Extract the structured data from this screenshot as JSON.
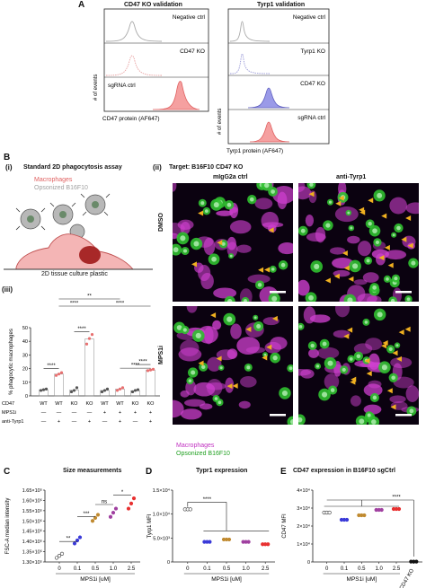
{
  "panel_labels": {
    "A": "A",
    "B": "B",
    "C": "C",
    "D": "D",
    "E": "E",
    "bi": "(i)",
    "bii": "(ii)",
    "biii": "(iii)"
  },
  "panelA": {
    "cd47": {
      "title": "CD47 KO validation",
      "xlabel": "CD47 protein (AF647)",
      "ylabel": "# of events",
      "rows": [
        {
          "label": "Negative ctrl",
          "color": "#a8a8a8",
          "fill": false
        },
        {
          "label": "CD47 KO",
          "color": "#e8a0a0",
          "fill": false
        },
        {
          "label": "sgRNA ctrl",
          "color": "#f08080",
          "fill": true
        }
      ]
    },
    "tyrp1": {
      "title": "Tyrp1 validation",
      "xlabel": "Tyrp1 protein (AF647)",
      "ylabel": "# of events",
      "rows": [
        {
          "label": "Negative ctrl",
          "color": "#a8a8a8",
          "fill": false
        },
        {
          "label": "Tyrp1 KO",
          "color": "#9a9ad8",
          "fill": false
        },
        {
          "label": "CD47 KO",
          "color": "#8a8ae8",
          "fill": true
        },
        {
          "label": "sgRNA ctrl",
          "color": "#f08080",
          "fill": true
        }
      ]
    }
  },
  "panelBi": {
    "title": "Standard 2D phagocytosis assay",
    "legend1": "Macrophages",
    "legend2": "Opsonized B16F10",
    "caption": "2D tissue culture plastic",
    "color_macro": "#e88a8a",
    "color_tumor": "#a8a8a8"
  },
  "panelBii": {
    "target": "Target: B16F10 CD47 KO",
    "col1": "mIgG2a ctrl",
    "col2": "anti-Tyrp1",
    "row1": "DMSO",
    "row2": "MPS1i",
    "legend1": "Macrophages",
    "legend2": "Opsonized B16F10",
    "color_magenta": "#d040d0",
    "color_green": "#30c030"
  },
  "panelBiii": {
    "chart_data": {
      "type": "scatter",
      "ylabel": "% phagocytic macrophages",
      "ylim": [
        0,
        50
      ],
      "yticks": [
        0,
        10,
        20,
        30,
        40,
        50
      ],
      "row_labels": [
        "CD47",
        "MPS1i",
        "anti-Tyrp1"
      ],
      "groups": [
        {
          "cd47": "WT",
          "mps1i": "—",
          "tyrp1": "—",
          "values": [
            4,
            4.5,
            5
          ],
          "color": "#555555"
        },
        {
          "cd47": "WT",
          "mps1i": "—",
          "tyrp1": "+",
          "values": [
            15,
            16,
            17
          ],
          "color": "#e87070"
        },
        {
          "cd47": "KO",
          "mps1i": "—",
          "tyrp1": "—",
          "values": [
            3,
            4,
            6
          ],
          "color": "#555555"
        },
        {
          "cd47": "KO",
          "mps1i": "—",
          "tyrp1": "+",
          "values": [
            38,
            42,
            45
          ],
          "color": "#e87070"
        },
        {
          "cd47": "WT",
          "mps1i": "+",
          "tyrp1": "—",
          "values": [
            3,
            4,
            5
          ],
          "color": "#555555"
        },
        {
          "cd47": "WT",
          "mps1i": "+",
          "tyrp1": "+",
          "values": [
            4,
            5,
            6
          ],
          "color": "#e87070"
        },
        {
          "cd47": "KO",
          "mps1i": "+",
          "tyrp1": "—",
          "values": [
            3,
            4,
            4.5
          ],
          "color": "#555555"
        },
        {
          "cd47": "KO",
          "mps1i": "+",
          "tyrp1": "+",
          "values": [
            18.5,
            19,
            19.5
          ],
          "color": "#e87070"
        }
      ],
      "sig": [
        "****",
        "****",
        "****",
        "**",
        "****",
        "****",
        "****"
      ]
    }
  },
  "panelC": {
    "title": "Size measurements",
    "chart_data": {
      "type": "scatter",
      "ylabel": "FSC-A median intensity",
      "xlabel": "MPS1i [uM]",
      "x": [
        "0",
        "0.1",
        "0.5",
        "1.0",
        "2.5"
      ],
      "ylim": [
        130000.0,
        165000.0
      ],
      "yticks": [
        "1.30×10⁵",
        "1.35×10⁵",
        "1.40×10⁵",
        "1.45×10⁵",
        "1.50×10⁵",
        "1.55×10⁵",
        "1.60×10⁵",
        "1.65×10⁵"
      ],
      "colors": [
        "#ffffff",
        "#3a3ad8",
        "#c08a30",
        "#a040a0",
        "#e83030"
      ],
      "values": [
        [
          132000,
          133000,
          134000
        ],
        [
          139000,
          140500,
          142000
        ],
        [
          150000,
          151500,
          153000
        ],
        [
          152000,
          154000,
          156000
        ],
        [
          156000,
          158500,
          161000
        ]
      ],
      "sig": [
        "**",
        "***",
        "ns",
        "*"
      ]
    }
  },
  "panelD": {
    "title": "Typr1 expression",
    "chart_data": {
      "type": "scatter",
      "ylabel": "Tyrp1 MFI",
      "xlabel": "MPS1i [uM]",
      "x": [
        "0",
        "0.1",
        "0.5",
        "1.0",
        "2.5"
      ],
      "ylim": [
        0,
        15000
      ],
      "yticks": [
        "0",
        "5.0×10³",
        "1.0×10⁴",
        "1.5×10⁴"
      ],
      "colors": [
        "#ffffff",
        "#3a3ad8",
        "#c08a30",
        "#a040a0",
        "#e83030"
      ],
      "values": [
        [
          11000,
          11000,
          11000
        ],
        [
          4200,
          4200,
          4200
        ],
        [
          4700,
          4700,
          4700
        ],
        [
          4200,
          4200,
          4200
        ],
        [
          3700,
          3700,
          3700
        ]
      ],
      "sig": [
        "****"
      ]
    }
  },
  "panelE": {
    "title": "CD47 expression in B16F10 sgCtrl",
    "chart_data": {
      "type": "scatter",
      "ylabel": "CD47 MFI",
      "xlabel": "MPS1i [uM]",
      "x": [
        "0",
        "0.1",
        "0.5",
        "1.0",
        "2.5",
        "CD47 KO"
      ],
      "ylim": [
        0,
        40000
      ],
      "yticks": [
        "0",
        "1×10⁴",
        "2×10⁴",
        "3×10⁴",
        "4×10⁴"
      ],
      "colors": [
        "#ffffff",
        "#3a3ad8",
        "#c08a30",
        "#a040a0",
        "#e83030",
        "#111111"
      ],
      "values": [
        [
          27500,
          27500,
          27500
        ],
        [
          23500,
          23500,
          23500
        ],
        [
          26000,
          26000,
          26000
        ],
        [
          29000,
          29000,
          29000
        ],
        [
          29500,
          29500,
          29500
        ],
        [
          200,
          200,
          200
        ]
      ],
      "sig": [
        "****"
      ]
    }
  }
}
